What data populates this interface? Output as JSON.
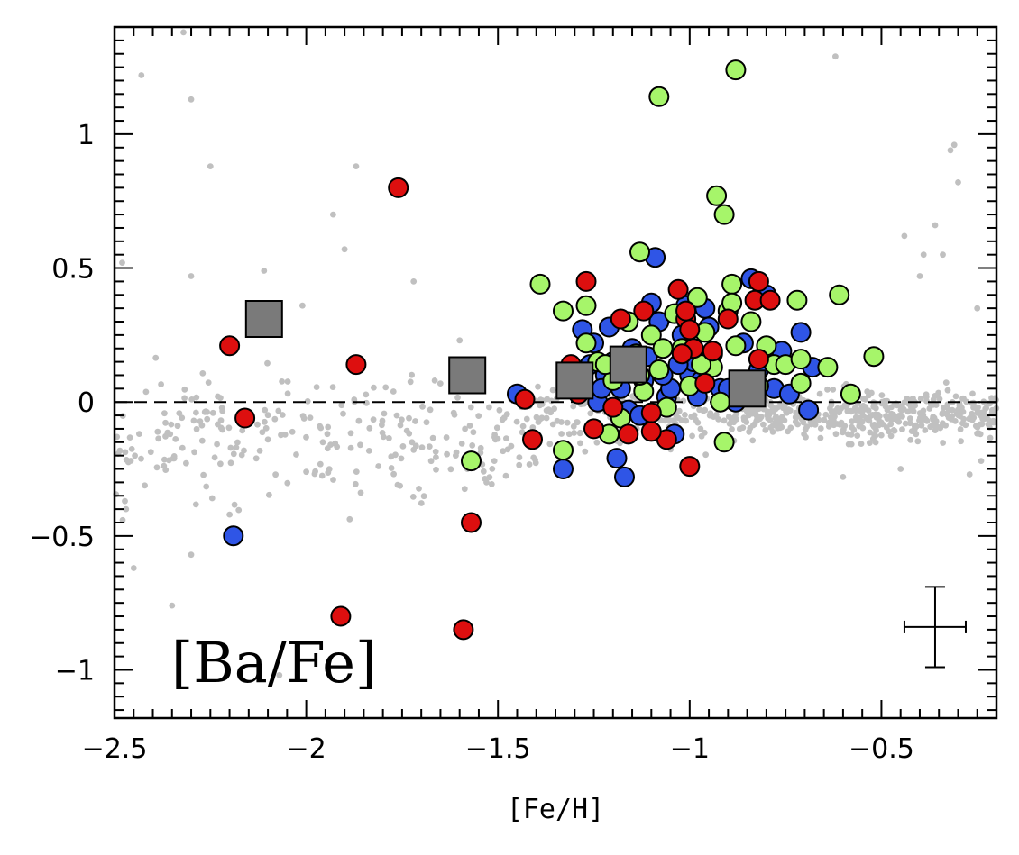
{
  "chart_data": {
    "type": "scatter",
    "xlabel": "[Fe/H]",
    "ylabel": "",
    "annotation": "[Ba/Fe]",
    "xlim": [
      -2.5,
      -0.2
    ],
    "ylim": [
      -1.18,
      1.4
    ],
    "x_ticks": [
      -2.5,
      -2,
      -1.5,
      -1,
      -0.5
    ],
    "x_tick_labels": [
      "−2.5",
      "−2",
      "−1.5",
      "−1",
      "−0.5"
    ],
    "y_ticks": [
      -1,
      -0.5,
      0,
      0.5,
      1
    ],
    "y_tick_labels": [
      "−1",
      "−0.5",
      "0",
      "0.5",
      "1"
    ],
    "grid": false,
    "reference_line": {
      "y": 0,
      "style": "dashed"
    },
    "error_bar": {
      "x": -0.36,
      "y": -0.84,
      "xerr": 0.08,
      "yerr": 0.15
    },
    "colors": {
      "background_field": "#c0c0c0",
      "blue": "#2f55e6",
      "green": "#a6f56a",
      "red": "#dd0f0f",
      "square": "#7a7a7a"
    },
    "series": [
      {
        "marker": "circle",
        "color": "#2f55e6",
        "points": [
          [
            -2.19,
            -0.5
          ],
          [
            -1.33,
            -0.25
          ],
          [
            -1.19,
            -0.21
          ],
          [
            -1.17,
            -0.28
          ],
          [
            -1.09,
            0.54
          ],
          [
            -0.84,
            0.46
          ],
          [
            -0.71,
            0.26
          ],
          [
            -0.69,
            -0.03
          ],
          [
            -1.45,
            0.03
          ],
          [
            -1.3,
            0.06
          ],
          [
            -1.28,
            0.27
          ],
          [
            -1.25,
            0.22
          ],
          [
            -1.22,
            0.1
          ],
          [
            -1.2,
            0.15
          ],
          [
            -1.18,
            0.05
          ],
          [
            -1.15,
            0.2
          ],
          [
            -1.12,
            0.08
          ],
          [
            -1.1,
            0.37
          ],
          [
            -1.08,
            0.3
          ],
          [
            -1.06,
            0.02
          ],
          [
            -1.04,
            -0.12
          ],
          [
            -1.02,
            0.25
          ],
          [
            -1.0,
            0.1
          ],
          [
            -0.98,
            0.02
          ],
          [
            -0.96,
            0.35
          ],
          [
            -0.94,
            0.18
          ],
          [
            -0.92,
            0.05
          ],
          [
            -0.88,
            0.0
          ],
          [
            -0.86,
            0.22
          ],
          [
            -0.82,
            0.12
          ],
          [
            -0.8,
            0.4
          ],
          [
            -0.78,
            0.05
          ],
          [
            -0.76,
            0.19
          ],
          [
            -0.74,
            0.03
          ],
          [
            -0.68,
            0.13
          ],
          [
            -1.24,
            0.0
          ],
          [
            -1.16,
            -0.03
          ],
          [
            -1.14,
            0.12
          ],
          [
            -1.26,
            0.14
          ],
          [
            -1.05,
            0.05
          ],
          [
            -1.01,
            0.36
          ],
          [
            -0.97,
            0.08
          ],
          [
            -1.23,
            0.05
          ],
          [
            -1.21,
            0.28
          ],
          [
            -1.11,
            0.17
          ],
          [
            -1.07,
            0.1
          ],
          [
            -0.99,
            0.15
          ],
          [
            -0.9,
            0.05
          ],
          [
            -0.84,
            0.08
          ],
          [
            -1.03,
            0.14
          ],
          [
            -1.13,
            -0.05
          ],
          [
            -0.95,
            0.28
          ]
        ]
      },
      {
        "marker": "circle",
        "color": "#a6f56a",
        "points": [
          [
            -0.88,
            1.24
          ],
          [
            -1.08,
            1.14
          ],
          [
            -0.93,
            0.77
          ],
          [
            -0.91,
            0.7
          ],
          [
            -1.13,
            0.56
          ],
          [
            -1.39,
            0.44
          ],
          [
            -1.27,
            0.36
          ],
          [
            -1.33,
            0.34
          ],
          [
            -0.61,
            0.4
          ],
          [
            -0.72,
            0.38
          ],
          [
            -0.52,
            0.17
          ],
          [
            -0.58,
            0.03
          ],
          [
            -1.33,
            -0.18
          ],
          [
            -1.57,
            -0.22
          ],
          [
            -0.91,
            -0.15
          ],
          [
            -1.27,
            0.22
          ],
          [
            -1.24,
            0.15
          ],
          [
            -1.2,
            0.08
          ],
          [
            -1.18,
            -0.06
          ],
          [
            -1.16,
            0.3
          ],
          [
            -1.14,
            0.18
          ],
          [
            -1.12,
            0.04
          ],
          [
            -1.1,
            0.25
          ],
          [
            -1.08,
            0.12
          ],
          [
            -1.06,
            -0.02
          ],
          [
            -1.04,
            0.33
          ],
          [
            -1.02,
            0.2
          ],
          [
            -1.0,
            0.06
          ],
          [
            -0.98,
            0.39
          ],
          [
            -0.96,
            0.26
          ],
          [
            -0.94,
            0.13
          ],
          [
            -0.92,
            0.0
          ],
          [
            -0.9,
            0.34
          ],
          [
            -0.88,
            0.21
          ],
          [
            -0.86,
            0.08
          ],
          [
            -0.84,
            0.3
          ],
          [
            -0.8,
            0.21
          ],
          [
            -0.78,
            0.14
          ],
          [
            -0.75,
            0.14
          ],
          [
            -0.71,
            0.16
          ],
          [
            -0.71,
            0.07
          ],
          [
            -0.64,
            0.13
          ],
          [
            -0.89,
            0.44
          ],
          [
            -1.21,
            -0.12
          ],
          [
            -1.13,
            0.1
          ],
          [
            -1.07,
            0.2
          ],
          [
            -0.97,
            0.14
          ],
          [
            -0.89,
            0.37
          ],
          [
            -0.82,
            0.06
          ],
          [
            -1.22,
            0.14
          ]
        ]
      },
      {
        "marker": "circle",
        "color": "#dd0f0f",
        "points": [
          [
            -1.76,
            0.8
          ],
          [
            -2.2,
            0.21
          ],
          [
            -2.16,
            -0.06
          ],
          [
            -1.87,
            0.14
          ],
          [
            -1.91,
            -0.8
          ],
          [
            -1.59,
            -0.85
          ],
          [
            -1.57,
            -0.45
          ],
          [
            -1.41,
            -0.14
          ],
          [
            -1.43,
            0.01
          ],
          [
            -1.27,
            0.45
          ],
          [
            -1.25,
            -0.1
          ],
          [
            -1.18,
            0.31
          ],
          [
            -1.12,
            0.34
          ],
          [
            -1.1,
            -0.04
          ],
          [
            -1.06,
            -0.14
          ],
          [
            -1.03,
            0.42
          ],
          [
            -1.01,
            0.31
          ],
          [
            -0.99,
            0.2
          ],
          [
            -1.0,
            -0.24
          ],
          [
            -0.96,
            0.07
          ],
          [
            -0.94,
            0.19
          ],
          [
            -0.9,
            0.31
          ],
          [
            -0.82,
            0.45
          ],
          [
            -0.83,
            0.38
          ],
          [
            -0.79,
            0.38
          ],
          [
            -0.82,
            0.16
          ],
          [
            -1.2,
            -0.02
          ],
          [
            -1.16,
            -0.12
          ],
          [
            -1.1,
            -0.11
          ],
          [
            -1.02,
            0.18
          ],
          [
            -1.0,
            0.27
          ],
          [
            -1.01,
            0.34
          ],
          [
            -1.29,
            0.03
          ],
          [
            -1.31,
            0.14
          ]
        ]
      },
      {
        "marker": "square",
        "color": "#7a7a7a",
        "points": [
          [
            -2.11,
            0.31
          ],
          [
            -1.58,
            0.1
          ],
          [
            -1.3,
            0.08
          ],
          [
            -1.16,
            0.14
          ],
          [
            -0.85,
            0.05
          ]
        ]
      }
    ]
  }
}
